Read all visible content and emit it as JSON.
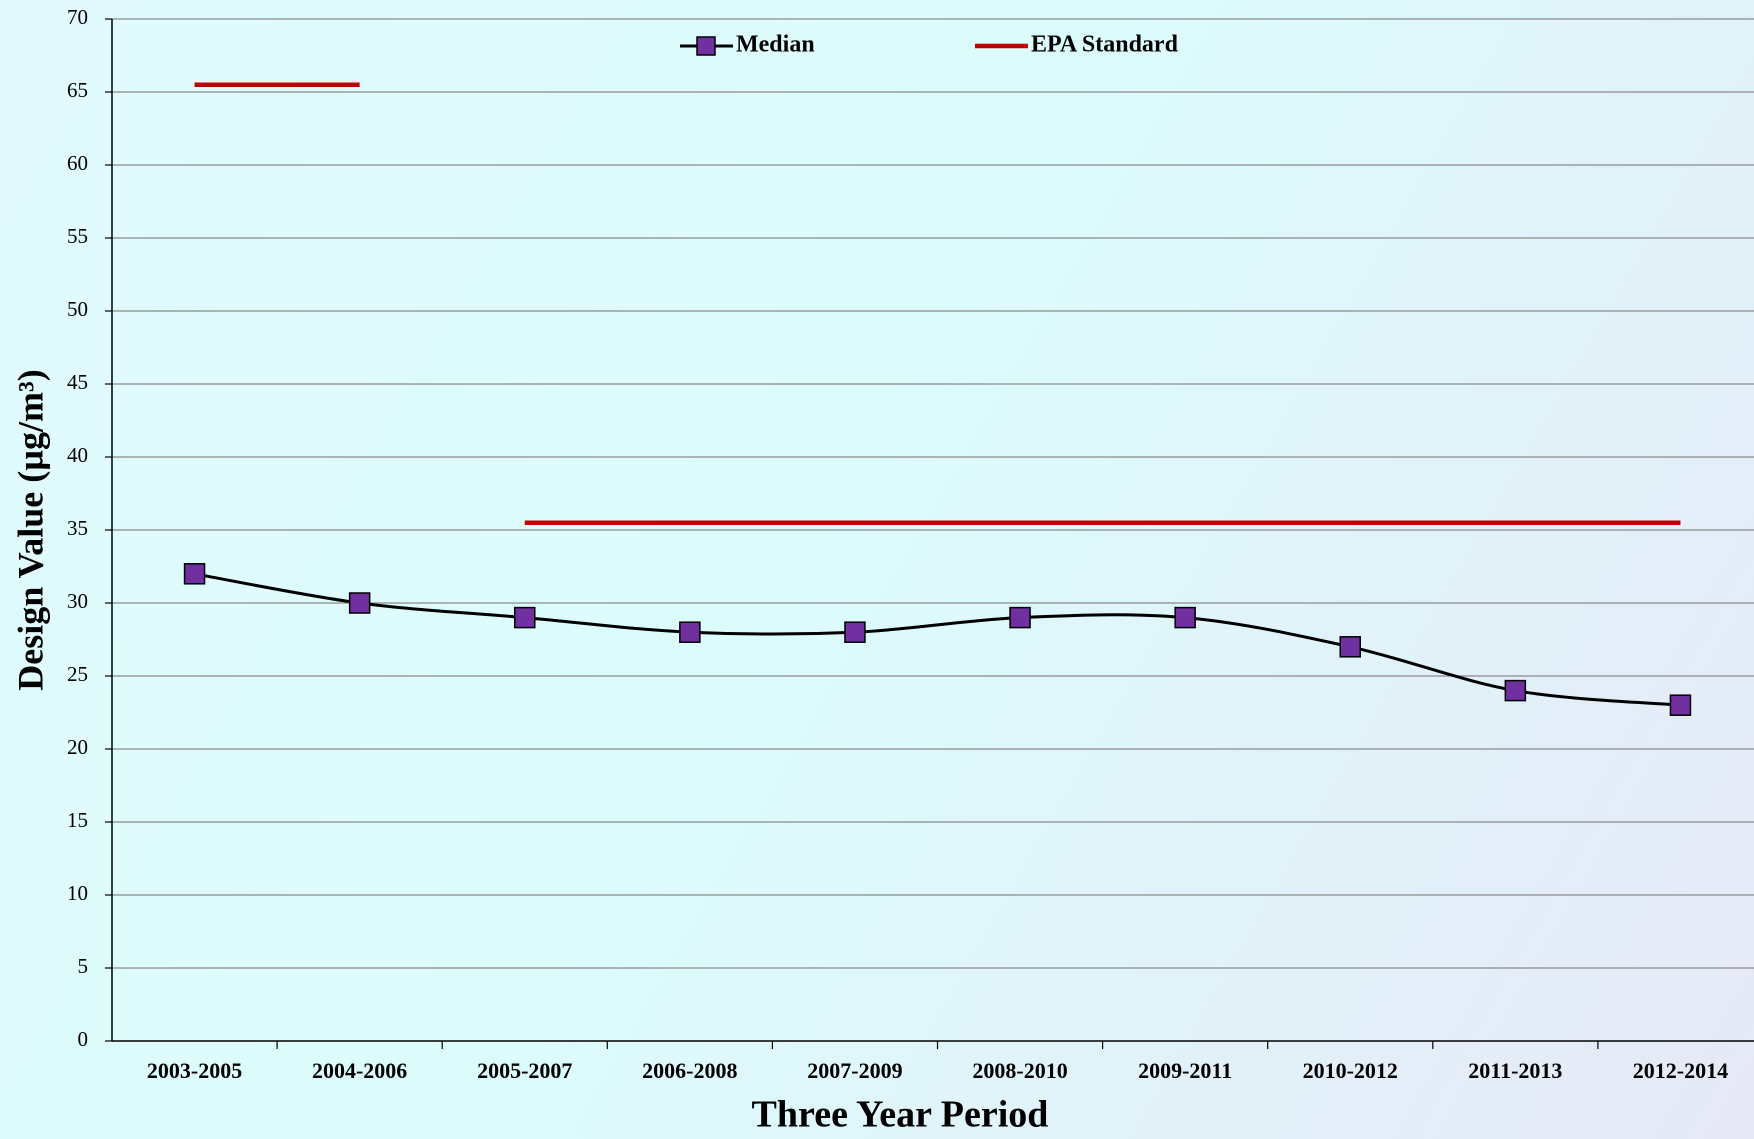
{
  "chart_data": {
    "type": "line",
    "x_label": "Three Year Period",
    "y_label": "Design Value (µg/m³)",
    "categories": [
      "2003-2005",
      "2004-2006",
      "2005-2007",
      "2006-2008",
      "2007-2009",
      "2008-2010",
      "2009-2011",
      "2010-2012",
      "2011-2013",
      "2012-2014"
    ],
    "series": [
      {
        "name": "Median",
        "color": "#7030a0",
        "line_color": "#000000",
        "marker": "square",
        "smooth": true,
        "values": [
          32,
          30,
          29,
          28,
          28,
          29,
          29,
          27,
          24,
          23
        ]
      },
      {
        "name": "EPA Standard",
        "color": "#c00000",
        "marker": "none",
        "style": "levels",
        "values": [
          65.5,
          65.5,
          35.5,
          35.5,
          35.5,
          35.5,
          35.5,
          35.5,
          35.5,
          35.5
        ]
      }
    ],
    "ylim": [
      0,
      70
    ],
    "yticks": [
      0,
      5,
      10,
      15,
      20,
      25,
      30,
      35,
      40,
      45,
      50,
      55,
      60,
      65,
      70
    ],
    "grid": true,
    "legend": "top"
  }
}
